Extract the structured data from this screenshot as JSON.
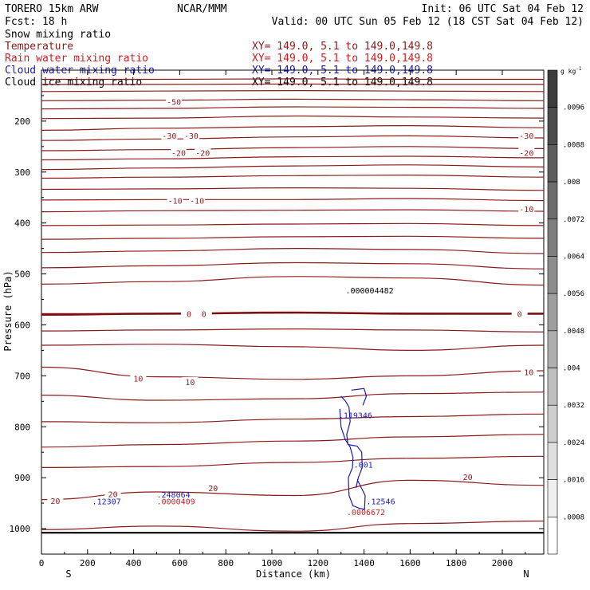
{
  "header": {
    "model_line": "TORERO  15km ARW",
    "fcst_line": "Fcst:   18 h",
    "center": "NCAR/MMM",
    "init": "Init: 06 UTC Sat 04 Feb 12",
    "valid": "Valid: 00 UTC Sun 05 Feb 12 (18 CST Sat 04 Feb 12)"
  },
  "fields": [
    {
      "name": "Snow mixing ratio",
      "color": "#000000",
      "xy": ""
    },
    {
      "name": "Temperature",
      "color": "#8b1a1a",
      "xy": "XY= 149.0,  5.1 to 149.0,149.8"
    },
    {
      "name": "Rain water mixing ratio",
      "color": "#d41b1b",
      "xy": "XY= 149.0,  5.1 to 149.0,149.8"
    },
    {
      "name": "Cloud water mixing ratio",
      "color": "#1a1ab4",
      "xy": "XY= 149.0,  5.1 to 149.0,149.8"
    },
    {
      "name": "Cloud ice mixing ratio",
      "color": "#000000",
      "xy": "XY= 149.0,  5.1 to 149.0,149.8"
    }
  ],
  "chart_data": {
    "type": "contour cross-section",
    "xlabel": "Distance (km)",
    "ylabel": "Pressure (hPa)",
    "xlim": [
      0,
      2180
    ],
    "ylim": [
      100,
      1050
    ],
    "x_ticks": [
      0,
      200,
      400,
      600,
      800,
      1000,
      1200,
      1400,
      1600,
      1800,
      2000
    ],
    "y_ticks": [
      200,
      300,
      400,
      500,
      600,
      700,
      800,
      900,
      1000
    ],
    "x_start_label": "S",
    "x_end_label": "N",
    "colorbar": {
      "unit": "g kg",
      "unit_exp": "-1",
      "ticks": [
        ".0096",
        ".0088",
        ".008",
        ".0072",
        ".0064",
        ".0056",
        ".0048",
        ".004",
        ".0032",
        ".0024",
        ".0016",
        ".0008"
      ],
      "min": 0,
      "max": 0.0104,
      "step": 0.0008
    },
    "temperature_lines": [
      {
        "p": [
          118,
          118,
          117,
          118,
          118
        ],
        "x": [
          0,
          500,
          1100,
          1600,
          2180
        ]
      },
      {
        "p": [
          128,
          128,
          127,
          128,
          128
        ],
        "x": [
          0,
          500,
          1100,
          1600,
          2180
        ]
      },
      {
        "p": [
          142,
          141,
          140,
          141,
          142
        ],
        "x": [
          0,
          500,
          1100,
          1600,
          2180
        ]
      },
      {
        "p": [
          160,
          159,
          157,
          158,
          160
        ],
        "x": [
          0,
          500,
          1100,
          1600,
          2180
        ]
      },
      {
        "p": [
          176,
          175,
          172,
          173,
          175
        ],
        "x": [
          0,
          500,
          1100,
          1600,
          2180
        ]
      },
      {
        "p": [
          195,
          194,
          190,
          192,
          194
        ],
        "x": [
          0,
          500,
          1100,
          1600,
          2180
        ]
      },
      {
        "p": [
          218,
          214,
          211,
          209,
          213
        ],
        "x": [
          0,
          500,
          1100,
          1600,
          2180
        ]
      },
      {
        "p": [
          238,
          235,
          231,
          229,
          233
        ],
        "x": [
          0,
          500,
          1100,
          1600,
          2180
        ]
      },
      {
        "p": [
          258,
          256,
          252,
          250,
          254
        ],
        "x": [
          0,
          500,
          1100,
          1600,
          2180
        ]
      },
      {
        "p": [
          276,
          274,
          270,
          269,
          272
        ],
        "x": [
          0,
          500,
          1100,
          1600,
          2180
        ]
      },
      {
        "p": [
          295,
          292,
          288,
          286,
          290
        ],
        "x": [
          0,
          500,
          1100,
          1600,
          2180
        ]
      },
      {
        "p": [
          312,
          310,
          307,
          306,
          310
        ],
        "x": [
          0,
          500,
          1100,
          1600,
          2180
        ]
      },
      {
        "p": [
          334,
          333,
          331,
          332,
          336
        ],
        "x": [
          0,
          500,
          1100,
          1600,
          2180
        ]
      },
      {
        "p": [
          355,
          354,
          354,
          352,
          356
        ],
        "x": [
          0,
          500,
          1100,
          1600,
          2180
        ]
      },
      {
        "p": [
          378,
          376,
          375,
          374,
          377
        ],
        "x": [
          0,
          500,
          1100,
          1600,
          2180
        ]
      },
      {
        "p": [
          405,
          404,
          402,
          401,
          405
        ],
        "x": [
          0,
          500,
          1100,
          1600,
          2180
        ]
      },
      {
        "p": [
          432,
          430,
          427,
          426,
          430
        ],
        "x": [
          0,
          500,
          1100,
          1600,
          2180
        ]
      },
      {
        "p": [
          458,
          455,
          450,
          452,
          460
        ],
        "x": [
          0,
          500,
          1100,
          1600,
          2180
        ]
      },
      {
        "p": [
          488,
          484,
          478,
          480,
          490
        ],
        "x": [
          0,
          500,
          1100,
          1600,
          2180
        ]
      },
      {
        "p": [
          520,
          515,
          505,
          508,
          522
        ],
        "x": [
          0,
          500,
          1100,
          1600,
          2180
        ]
      },
      {
        "p": [
          578,
          578,
          576,
          577,
          578
        ],
        "x": [
          0,
          500,
          1100,
          1600,
          2180
        ]
      },
      {
        "p": [
          612,
          610,
          608,
          610,
          614
        ],
        "x": [
          0,
          500,
          1100,
          1600,
          2180
        ]
      },
      {
        "p": [
          640,
          638,
          643,
          650,
          640
        ],
        "x": [
          0,
          500,
          1100,
          1600,
          2180
        ]
      },
      {
        "p": [
          683,
          702,
          707,
          700,
          690
        ],
        "x": [
          0,
          500,
          1100,
          1600,
          2180
        ]
      },
      {
        "p": [
          738,
          748,
          745,
          735,
          732
        ],
        "x": [
          0,
          500,
          1100,
          1600,
          2180
        ]
      },
      {
        "p": [
          790,
          792,
          785,
          780,
          775
        ],
        "x": [
          0,
          500,
          1100,
          1600,
          2180
        ]
      },
      {
        "p": [
          840,
          835,
          828,
          820,
          815
        ],
        "x": [
          0,
          500,
          1100,
          1600,
          2180
        ]
      },
      {
        "p": [
          880,
          878,
          870,
          862,
          858
        ],
        "x": [
          0,
          500,
          1100,
          1600,
          2180
        ]
      },
      {
        "p": [
          943,
          928,
          935,
          905,
          915
        ],
        "x": [
          0,
          500,
          1100,
          1600,
          2180
        ]
      },
      {
        "p": [
          1002,
          995,
          1005,
          990,
          985
        ],
        "x": [
          0,
          500,
          1100,
          1600,
          2180
        ]
      }
    ],
    "freezing_line": {
      "p": [
        580,
        578,
        576,
        578,
        578
      ],
      "x": [
        0,
        500,
        1100,
        1600,
        2180
      ]
    },
    "surface_line": {
      "p": [
        1008,
        1008
      ],
      "x": [
        0,
        2180
      ]
    },
    "contour_labels": [
      {
        "text": "-50",
        "x": 575,
        "p": 162,
        "color": "#8b1a1a"
      },
      {
        "text": "-30",
        "x": 555,
        "p": 228,
        "color": "#8b1a1a"
      },
      {
        "text": "-30",
        "x": 650,
        "p": 228,
        "color": "#8b1a1a"
      },
      {
        "text": "-30",
        "x": 2105,
        "p": 228,
        "color": "#8b1a1a"
      },
      {
        "text": "-20",
        "x": 595,
        "p": 262,
        "color": "#8b1a1a"
      },
      {
        "text": "-20",
        "x": 700,
        "p": 262,
        "color": "#8b1a1a"
      },
      {
        "text": "-20",
        "x": 2105,
        "p": 262,
        "color": "#8b1a1a"
      },
      {
        "text": "-10",
        "x": 580,
        "p": 356,
        "color": "#8b1a1a"
      },
      {
        "text": "-10",
        "x": 675,
        "p": 356,
        "color": "#8b1a1a"
      },
      {
        "text": "-10",
        "x": 2105,
        "p": 372,
        "color": "#8b1a1a"
      },
      {
        "text": "0",
        "x": 640,
        "p": 578,
        "color": "#8b1a1a"
      },
      {
        "text": "0",
        "x": 705,
        "p": 578,
        "color": "#8b1a1a"
      },
      {
        "text": "0",
        "x": 2075,
        "p": 578,
        "color": "#8b1a1a"
      },
      {
        "text": "10",
        "x": 420,
        "p": 705,
        "color": "#8b1a1a"
      },
      {
        "text": "10",
        "x": 645,
        "p": 712,
        "color": "#8b1a1a"
      },
      {
        "text": "10",
        "x": 2115,
        "p": 692,
        "color": "#8b1a1a"
      },
      {
        "text": "20",
        "x": 310,
        "p": 932,
        "color": "#8b1a1a"
      },
      {
        "text": "20",
        "x": 745,
        "p": 920,
        "color": "#8b1a1a"
      },
      {
        "text": "20",
        "x": 1850,
        "p": 898,
        "color": "#8b1a1a"
      },
      {
        "text": "20",
        "x": 60,
        "p": 945,
        "color": "#8b1a1a"
      }
    ],
    "maxima": [
      {
        "text": ".000004482",
        "x": 1320,
        "p": 538,
        "color": "#000000"
      },
      {
        "text": ".119346",
        "x": 1290,
        "p": 783,
        "color": "#1a1ab4"
      },
      {
        "text": ".001",
        "x": 1355,
        "p": 880,
        "color": "#1a1ab4"
      },
      {
        "text": ".12307",
        "x": 220,
        "p": 952,
        "color": "#1a1ab4"
      },
      {
        "text": ".248064",
        "x": 500,
        "p": 939,
        "color": "#1a1ab4"
      },
      {
        "text": ".0000409",
        "x": 500,
        "p": 952,
        "color": "#d41b1b"
      },
      {
        "text": ".12546",
        "x": 1410,
        "p": 952,
        "color": "#1a1ab4"
      },
      {
        "text": ".0006672",
        "x": 1325,
        "p": 973,
        "color": "#d41b1b"
      }
    ],
    "cloud_water_contour": {
      "x": [
        1300,
        1320,
        1335,
        1340,
        1325,
        1330,
        1370,
        1390,
        1392,
        1375,
        1365,
        1372,
        1405,
        1402,
        1380,
        1352,
        1335,
        1332,
        1350,
        1352,
        1340,
        1318,
        1300,
        1295
      ],
      "p": [
        740,
        750,
        762,
        790,
        815,
        835,
        838,
        850,
        880,
        900,
        920,
        905,
        935,
        962,
        960,
        955,
        935,
        900,
        880,
        860,
        840,
        825,
        800,
        765
      ]
    },
    "cloud_water_top": {
      "x": [
        1345,
        1400,
        1410,
        1395
      ],
      "p": [
        728,
        725,
        740,
        758
      ]
    }
  }
}
